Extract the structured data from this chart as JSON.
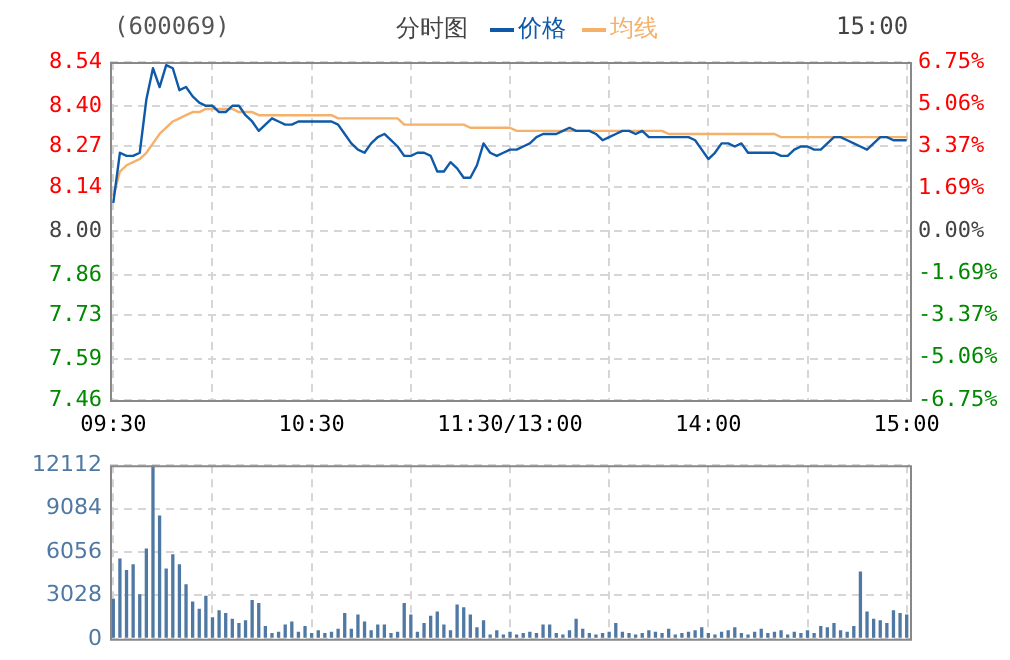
{
  "chart_data": [
    {
      "type": "line",
      "title": "(600069)",
      "subtitle": "分时图",
      "legend": "top",
      "grid": true,
      "annotations": [
        "15:00"
      ],
      "categories": [
        "09:30",
        null,
        null,
        null,
        null,
        null,
        null,
        null,
        null,
        null,
        null,
        null,
        null,
        null,
        null,
        null,
        null,
        null,
        null,
        null,
        null,
        null,
        null,
        null,
        null,
        null,
        null,
        null,
        null,
        null,
        "10:30",
        null,
        null,
        null,
        null,
        null,
        null,
        null,
        null,
        null,
        null,
        null,
        null,
        null,
        null,
        null,
        null,
        null,
        null,
        null,
        null,
        null,
        null,
        null,
        null,
        null,
        null,
        null,
        null,
        null,
        "11:30/13:00",
        null,
        null,
        null,
        null,
        null,
        null,
        null,
        null,
        null,
        null,
        null,
        null,
        null,
        null,
        null,
        null,
        null,
        null,
        null,
        null,
        null,
        null,
        null,
        null,
        null,
        null,
        null,
        null,
        null,
        "14:00",
        null,
        null,
        null,
        null,
        null,
        null,
        null,
        null,
        null,
        null,
        null,
        null,
        null,
        null,
        null,
        null,
        null,
        null,
        null,
        null,
        null,
        null,
        null,
        null,
        null,
        null,
        null,
        null,
        null,
        "15:00"
      ],
      "ylim": [
        7.46,
        8.54
      ],
      "yticks": [
        {
          "value": 7.46,
          "label": "7.46"
        },
        {
          "value": 7.59,
          "label": "7.59"
        },
        {
          "value": 7.73,
          "label": "7.73"
        },
        {
          "value": 7.86,
          "label": "7.86"
        },
        {
          "value": 8,
          "label": "8.00"
        },
        {
          "value": 8.14,
          "label": "8.14"
        },
        {
          "value": 8.27,
          "label": "8.27"
        },
        {
          "value": 8.4,
          "label": "8.40"
        },
        {
          "value": 8.54,
          "label": "8.54"
        }
      ],
      "y2lim": [
        -6.75,
        6.75
      ],
      "y2ticks": [
        {
          "value": -6.75,
          "label": "-6.75%"
        },
        {
          "value": -5.06,
          "label": "-5.06%"
        },
        {
          "value": -3.37,
          "label": "-3.37%"
        },
        {
          "value": -1.69,
          "label": "-1.69%"
        },
        {
          "value": 0,
          "label": "0.00%"
        },
        {
          "value": 1.69,
          "label": "1.69%"
        },
        {
          "value": 3.37,
          "label": "3.37%"
        },
        {
          "value": 5.06,
          "label": "5.06%"
        },
        {
          "value": 6.75,
          "label": "6.75%"
        }
      ],
      "series": [
        {
          "name": "价格",
          "color": "#0f5aa8",
          "values": [
            8.09,
            8.25,
            8.24,
            8.24,
            8.25,
            8.42,
            8.52,
            8.46,
            8.53,
            8.52,
            8.45,
            8.46,
            8.43,
            8.41,
            8.4,
            8.4,
            8.38,
            8.38,
            8.4,
            8.4,
            8.37,
            8.35,
            8.32,
            8.34,
            8.36,
            8.35,
            8.34,
            8.34,
            8.35,
            8.35,
            8.35,
            8.35,
            8.35,
            8.35,
            8.34,
            8.31,
            8.28,
            8.26,
            8.25,
            8.28,
            8.3,
            8.31,
            8.29,
            8.27,
            8.24,
            8.24,
            8.25,
            8.25,
            8.24,
            8.19,
            8.19,
            8.22,
            8.2,
            8.17,
            8.17,
            8.21,
            8.28,
            8.25,
            8.24,
            8.25,
            8.26,
            8.26,
            8.27,
            8.28,
            8.3,
            8.31,
            8.31,
            8.31,
            8.32,
            8.33,
            8.32,
            8.32,
            8.32,
            8.31,
            8.29,
            8.3,
            8.31,
            8.32,
            8.32,
            8.31,
            8.32,
            8.3,
            8.3,
            8.3,
            8.3,
            8.3,
            8.3,
            8.3,
            8.29,
            8.26,
            8.23,
            8.25,
            8.28,
            8.28,
            8.27,
            8.28,
            8.25,
            8.25,
            8.25,
            8.25,
            8.25,
            8.24,
            8.24,
            8.26,
            8.27,
            8.27,
            8.26,
            8.26,
            8.28,
            8.3,
            8.3,
            8.29,
            8.28,
            8.27,
            8.26,
            8.28,
            8.3,
            8.3,
            8.29,
            8.29,
            8.29
          ]
        },
        {
          "name": "均线",
          "color": "#f5b06a",
          "values": [
            8.11,
            8.19,
            8.21,
            8.22,
            8.23,
            8.25,
            8.28,
            8.31,
            8.33,
            8.35,
            8.36,
            8.37,
            8.38,
            8.38,
            8.39,
            8.39,
            8.39,
            8.39,
            8.39,
            8.38,
            8.38,
            8.38,
            8.37,
            8.37,
            8.37,
            8.37,
            8.37,
            8.37,
            8.37,
            8.37,
            8.37,
            8.37,
            8.37,
            8.37,
            8.36,
            8.36,
            8.36,
            8.36,
            8.36,
            8.36,
            8.36,
            8.36,
            8.36,
            8.36,
            8.34,
            8.34,
            8.34,
            8.34,
            8.34,
            8.34,
            8.34,
            8.34,
            8.34,
            8.34,
            8.33,
            8.33,
            8.33,
            8.33,
            8.33,
            8.33,
            8.33,
            8.32,
            8.32,
            8.32,
            8.32,
            8.32,
            8.32,
            8.32,
            8.32,
            8.32,
            8.32,
            8.32,
            8.32,
            8.32,
            8.32,
            8.32,
            8.32,
            8.32,
            8.32,
            8.32,
            8.32,
            8.32,
            8.32,
            8.32,
            8.31,
            8.31,
            8.31,
            8.31,
            8.31,
            8.31,
            8.31,
            8.31,
            8.31,
            8.31,
            8.31,
            8.31,
            8.31,
            8.31,
            8.31,
            8.31,
            8.31,
            8.3,
            8.3,
            8.3,
            8.3,
            8.3,
            8.3,
            8.3,
            8.3,
            8.3,
            8.3,
            8.3,
            8.3,
            8.3,
            8.3,
            8.3,
            8.3,
            8.3,
            8.3,
            8.3,
            8.3
          ]
        }
      ]
    },
    {
      "type": "bar",
      "color": "#4f79a3",
      "grid": true,
      "tick_labels": "y",
      "categories": [
        null,
        null,
        null,
        null,
        null,
        null,
        null,
        null,
        null,
        null,
        null,
        null,
        null,
        null,
        null,
        null,
        null,
        null,
        null,
        null,
        null,
        null,
        null,
        null,
        null,
        null,
        null,
        null,
        null,
        null,
        null,
        null,
        null,
        null,
        null,
        null,
        null,
        null,
        null,
        null,
        null,
        null,
        null,
        null,
        null,
        null,
        null,
        null,
        null,
        null,
        null,
        null,
        null,
        null,
        null,
        null,
        null,
        null,
        null,
        null,
        null,
        null,
        null,
        null,
        null,
        null,
        null,
        null,
        null,
        null,
        null,
        null,
        null,
        null,
        null,
        null,
        null,
        null,
        null,
        null,
        null,
        null,
        null,
        null,
        null,
        null,
        null,
        null,
        null,
        null,
        null,
        null,
        null,
        null,
        null,
        null,
        null,
        null,
        null,
        null,
        null,
        null,
        null,
        null,
        null,
        null,
        null,
        null,
        null,
        null,
        null,
        null,
        null,
        null,
        null,
        null,
        null,
        null,
        null,
        null,
        null
      ],
      "ylim": [
        0,
        12112
      ],
      "yticks": [
        0,
        3028,
        6056,
        9084,
        12112
      ],
      "values": [
        2800,
        5600,
        4800,
        5200,
        3100,
        6300,
        12100,
        8600,
        4900,
        5900,
        5200,
        3800,
        2600,
        2100,
        3000,
        1500,
        2000,
        1800,
        1400,
        1100,
        1300,
        2700,
        2500,
        900,
        400,
        500,
        1000,
        1200,
        500,
        900,
        400,
        600,
        400,
        500,
        700,
        1800,
        700,
        1700,
        1200,
        600,
        1000,
        1000,
        400,
        500,
        2500,
        1700,
        500,
        1100,
        1600,
        1900,
        1000,
        600,
        2400,
        2200,
        1700,
        800,
        1300,
        300,
        600,
        300,
        500,
        300,
        400,
        500,
        400,
        1000,
        1000,
        400,
        300,
        600,
        1400,
        700,
        400,
        300,
        400,
        500,
        1100,
        500,
        400,
        300,
        400,
        600,
        500,
        400,
        700,
        300,
        400,
        500,
        600,
        800,
        400,
        300,
        500,
        600,
        800,
        400,
        300,
        500,
        700,
        400,
        500,
        600,
        300,
        500,
        400,
        600,
        400,
        900,
        800,
        1100,
        600,
        500,
        900,
        4700,
        1900,
        1400,
        1300,
        1100,
        2000,
        1800,
        1700
      ]
    }
  ]
}
